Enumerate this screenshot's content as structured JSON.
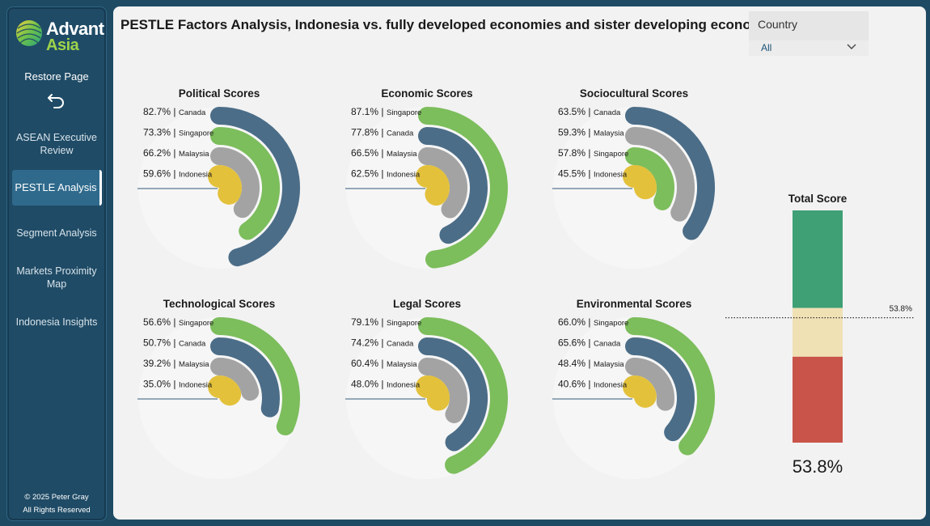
{
  "sidebar": {
    "logo_line1": "Advant",
    "logo_line2": "Asia",
    "restore_label": "Restore Page",
    "nav": [
      {
        "label": "ASEAN Executive Review",
        "active": false
      },
      {
        "label": "PESTLE Analysis",
        "active": true
      },
      {
        "label": "Segment Analysis",
        "active": false
      },
      {
        "label": "Markets Proximity Map",
        "active": false
      },
      {
        "label": "Indonesia Insights",
        "active": false
      }
    ],
    "footer_line1": "© 2025 Peter Gray",
    "footer_line2": "All Rights Reserved"
  },
  "header": {
    "title": "PESTLE Factors Analysis, Indonesia vs. fully developed economies and sister developing economy"
  },
  "slicer": {
    "label": "Country",
    "value": "All"
  },
  "colors": {
    "Canada": "#4b6d88",
    "Singapore": "#7cbd5c",
    "Malaysia": "#a3a3a3",
    "Indonesia": "#e3c13b",
    "total_high": "#3fa076",
    "total_mid": "#f0e1b5",
    "total_low": "#c9544a"
  },
  "chart_data": [
    {
      "type": "radial_bar",
      "title": "Political Scores",
      "series": [
        {
          "name": "Canada",
          "value": 82.7,
          "label": "82.7%"
        },
        {
          "name": "Singapore",
          "value": 73.3,
          "label": "73.3%"
        },
        {
          "name": "Malaysia",
          "value": 66.2,
          "label": "66.2%"
        },
        {
          "name": "Indonesia",
          "value": 59.6,
          "label": "59.6%"
        }
      ]
    },
    {
      "type": "radial_bar",
      "title": "Economic Scores",
      "series": [
        {
          "name": "Singapore",
          "value": 87.1,
          "label": "87.1%"
        },
        {
          "name": "Canada",
          "value": 77.8,
          "label": "77.8%"
        },
        {
          "name": "Malaysia",
          "value": 66.5,
          "label": "66.5%"
        },
        {
          "name": "Indonesia",
          "value": 62.5,
          "label": "62.5%"
        }
      ]
    },
    {
      "type": "radial_bar",
      "title": "Sociocultural Scores",
      "series": [
        {
          "name": "Canada",
          "value": 63.5,
          "label": "63.5%"
        },
        {
          "name": "Malaysia",
          "value": 59.3,
          "label": "59.3%"
        },
        {
          "name": "Singapore",
          "value": 57.8,
          "label": "57.8%"
        },
        {
          "name": "Indonesia",
          "value": 45.5,
          "label": "45.5%"
        }
      ]
    },
    {
      "type": "radial_bar",
      "title": "Technological Scores",
      "series": [
        {
          "name": "Singapore",
          "value": 56.6,
          "label": "56.6%"
        },
        {
          "name": "Canada",
          "value": 50.7,
          "label": "50.7%"
        },
        {
          "name": "Malaysia",
          "value": 39.2,
          "label": "39.2%"
        },
        {
          "name": "Indonesia",
          "value": 35.0,
          "label": "35.0%"
        }
      ]
    },
    {
      "type": "radial_bar",
      "title": "Legal Scores",
      "series": [
        {
          "name": "Singapore",
          "value": 79.1,
          "label": "79.1%"
        },
        {
          "name": "Canada",
          "value": 74.2,
          "label": "74.2%"
        },
        {
          "name": "Malaysia",
          "value": 60.4,
          "label": "60.4%"
        },
        {
          "name": "Indonesia",
          "value": 48.0,
          "label": "48.0%"
        }
      ]
    },
    {
      "type": "radial_bar",
      "title": "Environmental Scores",
      "series": [
        {
          "name": "Singapore",
          "value": 66.0,
          "label": "66.0%"
        },
        {
          "name": "Canada",
          "value": 65.6,
          "label": "65.6%"
        },
        {
          "name": "Malaysia",
          "value": 48.4,
          "label": "48.4%"
        },
        {
          "name": "Indonesia",
          "value": 40.6,
          "label": "40.6%"
        }
      ]
    },
    {
      "type": "bar",
      "title": "Total Score",
      "value": 53.8,
      "value_label": "53.8%",
      "marker_label": "53.8%",
      "bands": [
        {
          "name": "high",
          "from": 58,
          "to": 100
        },
        {
          "name": "mid",
          "from": 37,
          "to": 58
        },
        {
          "name": "low",
          "from": 0,
          "to": 37
        }
      ],
      "ylim": [
        0,
        100
      ]
    }
  ]
}
